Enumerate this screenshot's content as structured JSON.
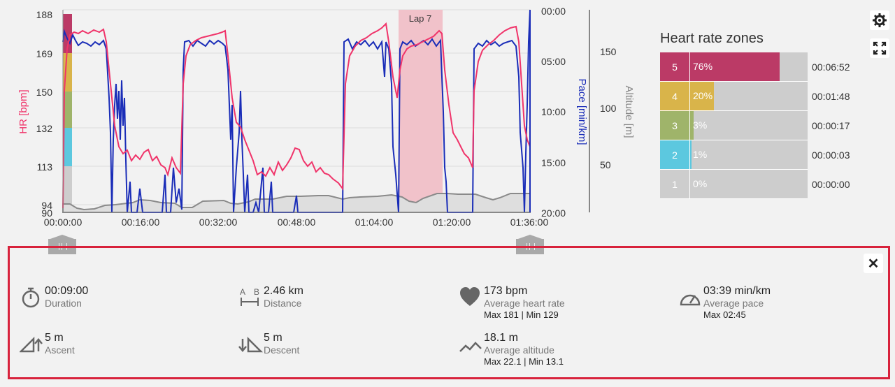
{
  "chart": {
    "hr_ticks": [
      "188",
      "169",
      "150",
      "132",
      "113",
      "94",
      "90"
    ],
    "pace_ticks": [
      "00:00",
      "05:00",
      "10:00",
      "15:00",
      "20:00"
    ],
    "alt_ticks": [
      "150",
      "100",
      "50"
    ],
    "time_ticks": [
      "00:00:00",
      "00:16:00",
      "00:32:00",
      "00:48:00",
      "01:04:00",
      "01:20:00",
      "01:36:00"
    ],
    "hr_label": "HR [bpm]",
    "pace_label": "Pace [min/km]",
    "alt_label": "Altitude [m]",
    "lap_label": "Lap 7",
    "colors": {
      "hr": "#f0346a",
      "pace": "#1a2db8",
      "altitude": "#8a8a8a",
      "lap": "#f1c2ca"
    }
  },
  "zones": {
    "title": "Heart rate zones",
    "items": [
      {
        "zone": "5",
        "percent": "76%",
        "fraction": 0.76,
        "time": "00:06:52",
        "color": "#bb3a66"
      },
      {
        "zone": "4",
        "percent": "20%",
        "fraction": 0.2,
        "time": "00:01:48",
        "color": "#d9b44a"
      },
      {
        "zone": "3",
        "percent": "3%",
        "fraction": 0.03,
        "time": "00:00:17",
        "color": "#9fb46a"
      },
      {
        "zone": "2",
        "percent": "1%",
        "fraction": 0.01,
        "time": "00:00:03",
        "color": "#5cc8df"
      },
      {
        "zone": "1",
        "percent": "0%",
        "fraction": 0.0,
        "time": "00:00:00",
        "color": "#cdcdcd"
      }
    ]
  },
  "stats": {
    "duration": {
      "value": "00:09:00",
      "label": "Duration"
    },
    "distance": {
      "value": "2.46 km",
      "label": "Distance",
      "icon_a": "A",
      "icon_b": "B"
    },
    "heart_rate": {
      "value": "173 bpm",
      "label": "Average heart rate",
      "sub": "Max 181  |  Min 129"
    },
    "pace": {
      "value": "03:39 min/km",
      "label": "Average pace",
      "sub": "Max 02:45"
    },
    "ascent": {
      "value": "5 m",
      "label": "Ascent"
    },
    "descent": {
      "value": "5 m",
      "label": "Descent"
    },
    "altitude": {
      "value": "18.1 m",
      "label": "Average altitude",
      "sub": "Max 22.1  |  Min 13.1"
    }
  },
  "buttons": {
    "close": "✕"
  }
}
